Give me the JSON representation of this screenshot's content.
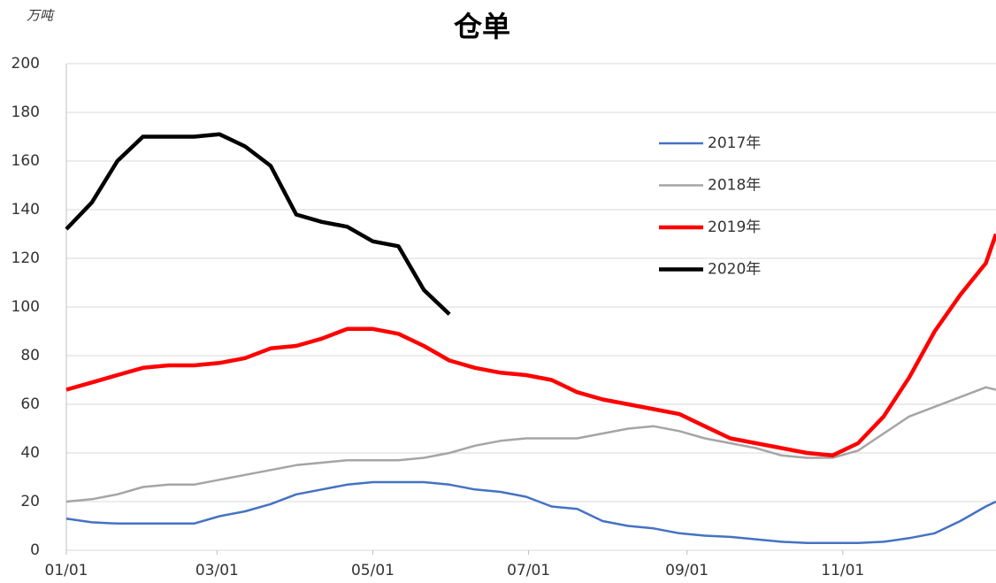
{
  "chart_data": {
    "type": "line",
    "title": "仓单",
    "y_unit_label": "万吨",
    "x": [
      0,
      10,
      20,
      30,
      40,
      50,
      60,
      70,
      80,
      90,
      100,
      110,
      120,
      130,
      140,
      150,
      160,
      170,
      180,
      190,
      200,
      210,
      220,
      230,
      240,
      250,
      260,
      270,
      280,
      290,
      300,
      310,
      320,
      330,
      340,
      350,
      360,
      364
    ],
    "xlim": [
      0,
      364
    ],
    "xticks": [
      {
        "value": 0,
        "label": "01/01"
      },
      {
        "value": 59,
        "label": "03/01"
      },
      {
        "value": 120,
        "label": "05/01"
      },
      {
        "value": 181,
        "label": "07/01"
      },
      {
        "value": 243,
        "label": "09/01"
      },
      {
        "value": 304,
        "label": "11/01"
      }
    ],
    "ylim": [
      0,
      200
    ],
    "yticks": [
      0,
      20,
      40,
      60,
      80,
      100,
      120,
      140,
      160,
      180,
      200
    ],
    "grid": true,
    "legend": "right",
    "series": [
      {
        "name": "2017年",
        "color": "#4472c4",
        "width": 2.5,
        "values": [
          13,
          11.5,
          11,
          11,
          11,
          11,
          14,
          16,
          19,
          23,
          25,
          27,
          28,
          28,
          28,
          27,
          25,
          24,
          22,
          18,
          17,
          12,
          10,
          9,
          7,
          6,
          5.5,
          4.5,
          3.5,
          3,
          3,
          3,
          3.5,
          5,
          7,
          12,
          18,
          20
        ]
      },
      {
        "name": "2018年",
        "color": "#a5a5a5",
        "width": 2.5,
        "values": [
          20,
          21,
          23,
          26,
          27,
          27,
          29,
          31,
          33,
          35,
          36,
          37,
          37,
          37,
          38,
          40,
          43,
          45,
          46,
          46,
          46,
          48,
          50,
          51,
          49,
          46,
          44,
          42,
          39,
          38,
          38,
          41,
          48,
          55,
          59,
          63,
          67,
          66
        ]
      },
      {
        "name": "2019年",
        "color": "#ff0000",
        "width": 4.5,
        "values": [
          66,
          69,
          72,
          75,
          76,
          76,
          77,
          79,
          83,
          84,
          87,
          91,
          91,
          89,
          84,
          78,
          75,
          73,
          72,
          70,
          65,
          62,
          60,
          58,
          56,
          51,
          46,
          44,
          42,
          40,
          39,
          44,
          55,
          71,
          90,
          105,
          118,
          130
        ]
      },
      {
        "name": "2020年",
        "color": "#000000",
        "width": 4.5,
        "values": [
          132,
          143,
          160,
          170,
          170,
          170,
          171,
          166,
          158,
          138,
          135,
          133,
          127,
          125,
          107,
          97,
          null,
          null,
          null,
          null,
          null,
          null,
          null,
          null,
          null,
          null,
          null,
          null,
          null,
          null,
          null,
          null,
          null,
          null,
          null,
          null,
          null,
          null
        ]
      }
    ]
  }
}
